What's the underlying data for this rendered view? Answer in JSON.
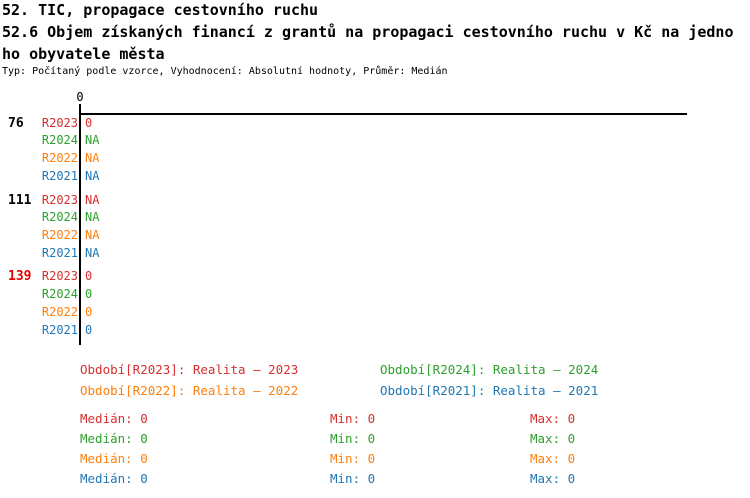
{
  "header": {
    "title_line1": "52. TIC, propagace cestovního ruchu",
    "title_line2": "52.6 Objem získaných financí z grantů na propagaci cestovního ruchu v Kč na jedno",
    "title_line3": "ho obyvatele města",
    "meta": "Typ: Počítaný podle vzorce, Vyhodnocení: Absolutní hodnoty, Průměr: Medián"
  },
  "colors": {
    "series": {
      "red": "#d62f2f",
      "green": "#2ca02c",
      "orange": "#ff7f0e",
      "blue": "#1f77b4"
    },
    "group_id_default": "#000000",
    "group_id_alert": "#e60000"
  },
  "chart_data": {
    "type": "bar",
    "orientation": "horizontal",
    "title": "52.6 Objem získaných financí z grantů na propagaci cestovního ruchu v Kč na jednoho obyvatele města",
    "x_axis": {
      "tick_labels": [
        "0"
      ],
      "axis_value": 0
    },
    "axis_tick_label": "0",
    "groups": [
      {
        "id": "76",
        "id_style": "default",
        "rows": [
          {
            "period": "R2023",
            "color": "red",
            "value": "0"
          },
          {
            "period": "R2024",
            "color": "green",
            "value": "NA"
          },
          {
            "period": "R2022",
            "color": "orange",
            "value": "NA"
          },
          {
            "period": "R2021",
            "color": "blue",
            "value": "NA"
          }
        ]
      },
      {
        "id": "111",
        "id_style": "default",
        "rows": [
          {
            "period": "R2023",
            "color": "red",
            "value": "NA"
          },
          {
            "period": "R2024",
            "color": "green",
            "value": "NA"
          },
          {
            "period": "R2022",
            "color": "orange",
            "value": "NA"
          },
          {
            "period": "R2021",
            "color": "blue",
            "value": "NA"
          }
        ]
      },
      {
        "id": "139",
        "id_style": "alert",
        "rows": [
          {
            "period": "R2023",
            "color": "red",
            "value": "0"
          },
          {
            "period": "R2024",
            "color": "green",
            "value": "0"
          },
          {
            "period": "R2022",
            "color": "orange",
            "value": "0"
          },
          {
            "period": "R2021",
            "color": "blue",
            "value": "0"
          }
        ]
      }
    ],
    "legend": [
      {
        "label": "Období[R2023]",
        "value": "Realita – 2023",
        "color": "red"
      },
      {
        "label": "Období[R2024]",
        "value": "Realita – 2024",
        "color": "green"
      },
      {
        "label": "Období[R2022]",
        "value": "Realita – 2022",
        "color": "orange"
      },
      {
        "label": "Období[R2021]",
        "value": "Realita – 2021",
        "color": "blue"
      }
    ],
    "stats": {
      "labels": {
        "median": "Medián",
        "min": "Min",
        "max": "Max"
      },
      "rows": [
        {
          "color": "red",
          "median": "0",
          "min": "0",
          "max": "0"
        },
        {
          "color": "green",
          "median": "0",
          "min": "0",
          "max": "0"
        },
        {
          "color": "orange",
          "median": "0",
          "min": "0",
          "max": "0"
        },
        {
          "color": "blue",
          "median": "0",
          "min": "0",
          "max": "0"
        }
      ]
    }
  }
}
